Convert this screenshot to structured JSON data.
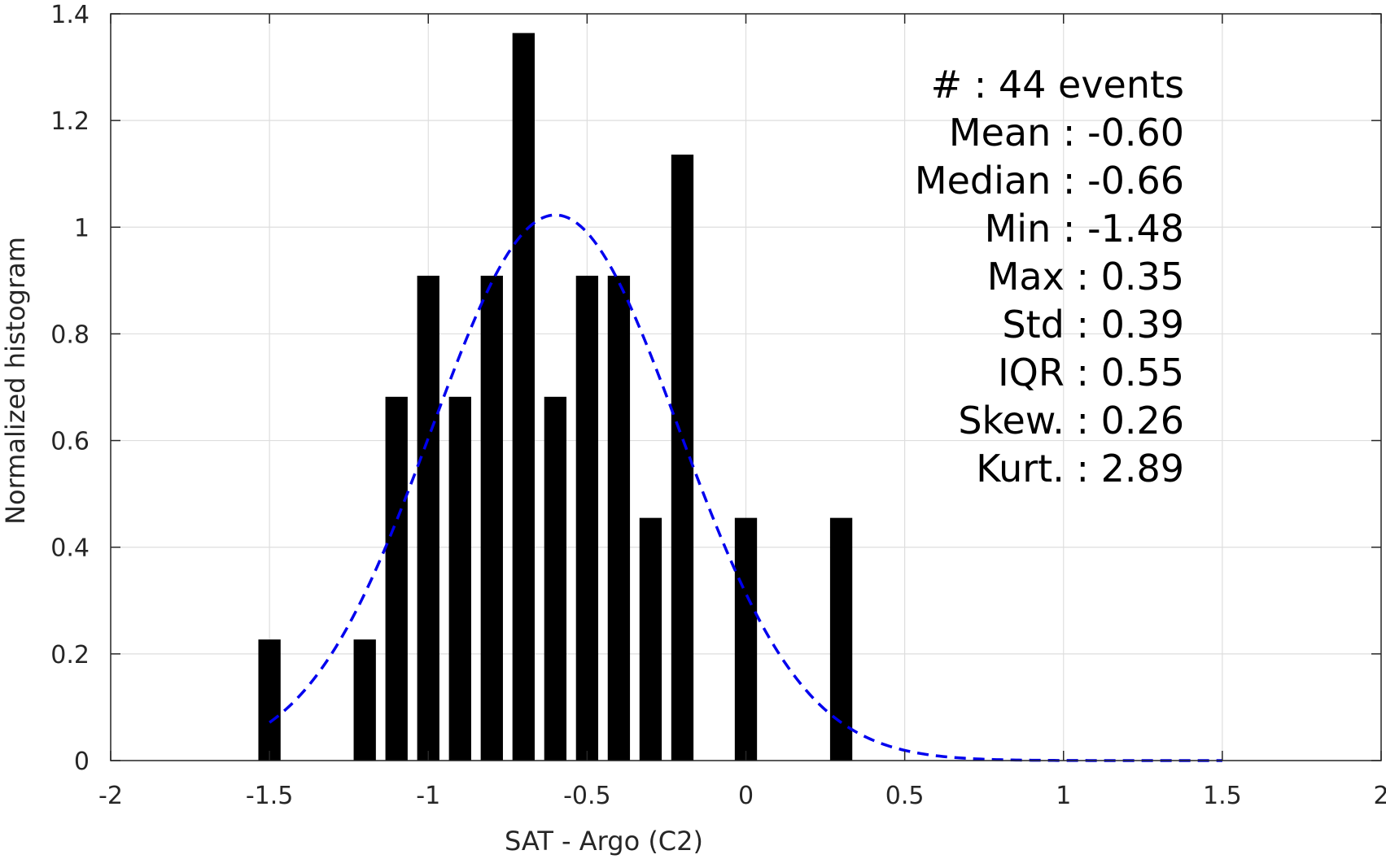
{
  "chart_data": {
    "type": "bar",
    "xlabel": "SAT - Argo (C2)",
    "ylabel": "Normalized histogram",
    "xlim": [
      -2,
      2
    ],
    "ylim": [
      0,
      1.4
    ],
    "xticks": [
      -2,
      -1.5,
      -1,
      -0.5,
      0,
      0.5,
      1,
      1.5,
      2
    ],
    "xtick_labels": [
      "-2",
      "-1.5",
      "-1",
      "-0.5",
      "0",
      "0.5",
      "1",
      "1.5",
      "2"
    ],
    "yticks": [
      0,
      0.2,
      0.4,
      0.6,
      0.8,
      1,
      1.2,
      1.4
    ],
    "ytick_labels": [
      "0",
      "0.2",
      "0.4",
      "0.6",
      "0.8",
      "1",
      "1.2",
      "1.4"
    ],
    "grid": true,
    "bar_color": "#000000",
    "bar_width": 0.07,
    "bars": {
      "x": [
        -1.5,
        -1.2,
        -1.1,
        -1.0,
        -0.9,
        -0.8,
        -0.7,
        -0.6,
        -0.5,
        -0.4,
        -0.3,
        -0.2,
        0.0,
        0.3
      ],
      "values": [
        0.227,
        0.227,
        0.682,
        0.909,
        0.682,
        0.909,
        1.364,
        0.682,
        0.909,
        0.909,
        0.455,
        1.136,
        0.455,
        0.455
      ]
    },
    "fit_curve": {
      "style": "dashed",
      "color": "#0000ee",
      "distribution": "normal",
      "mean": -0.6,
      "std": 0.39,
      "x_range": [
        -1.5,
        1.5
      ]
    }
  },
  "stats": {
    "lines": [
      {
        "label": "#  ",
        "sep": " : ",
        "value": "44 events"
      },
      {
        "label": "Mean",
        "sep": " : ",
        "value": "-0.60"
      },
      {
        "label": "Median",
        "sep": " : ",
        "value": "-0.66"
      },
      {
        "label": "Min",
        "sep": " : ",
        "value": "-1.48"
      },
      {
        "label": "Max",
        "sep": " : ",
        "value": "0.35"
      },
      {
        "label": "Std",
        "sep": " : ",
        "value": "0.39"
      },
      {
        "label": "IQR",
        "sep": " : ",
        "value": "0.55"
      },
      {
        "label": "Skew.",
        "sep": " : ",
        "value": "0.26"
      },
      {
        "label": "Kurt.",
        "sep": " : ",
        "value": "2.89"
      }
    ]
  }
}
